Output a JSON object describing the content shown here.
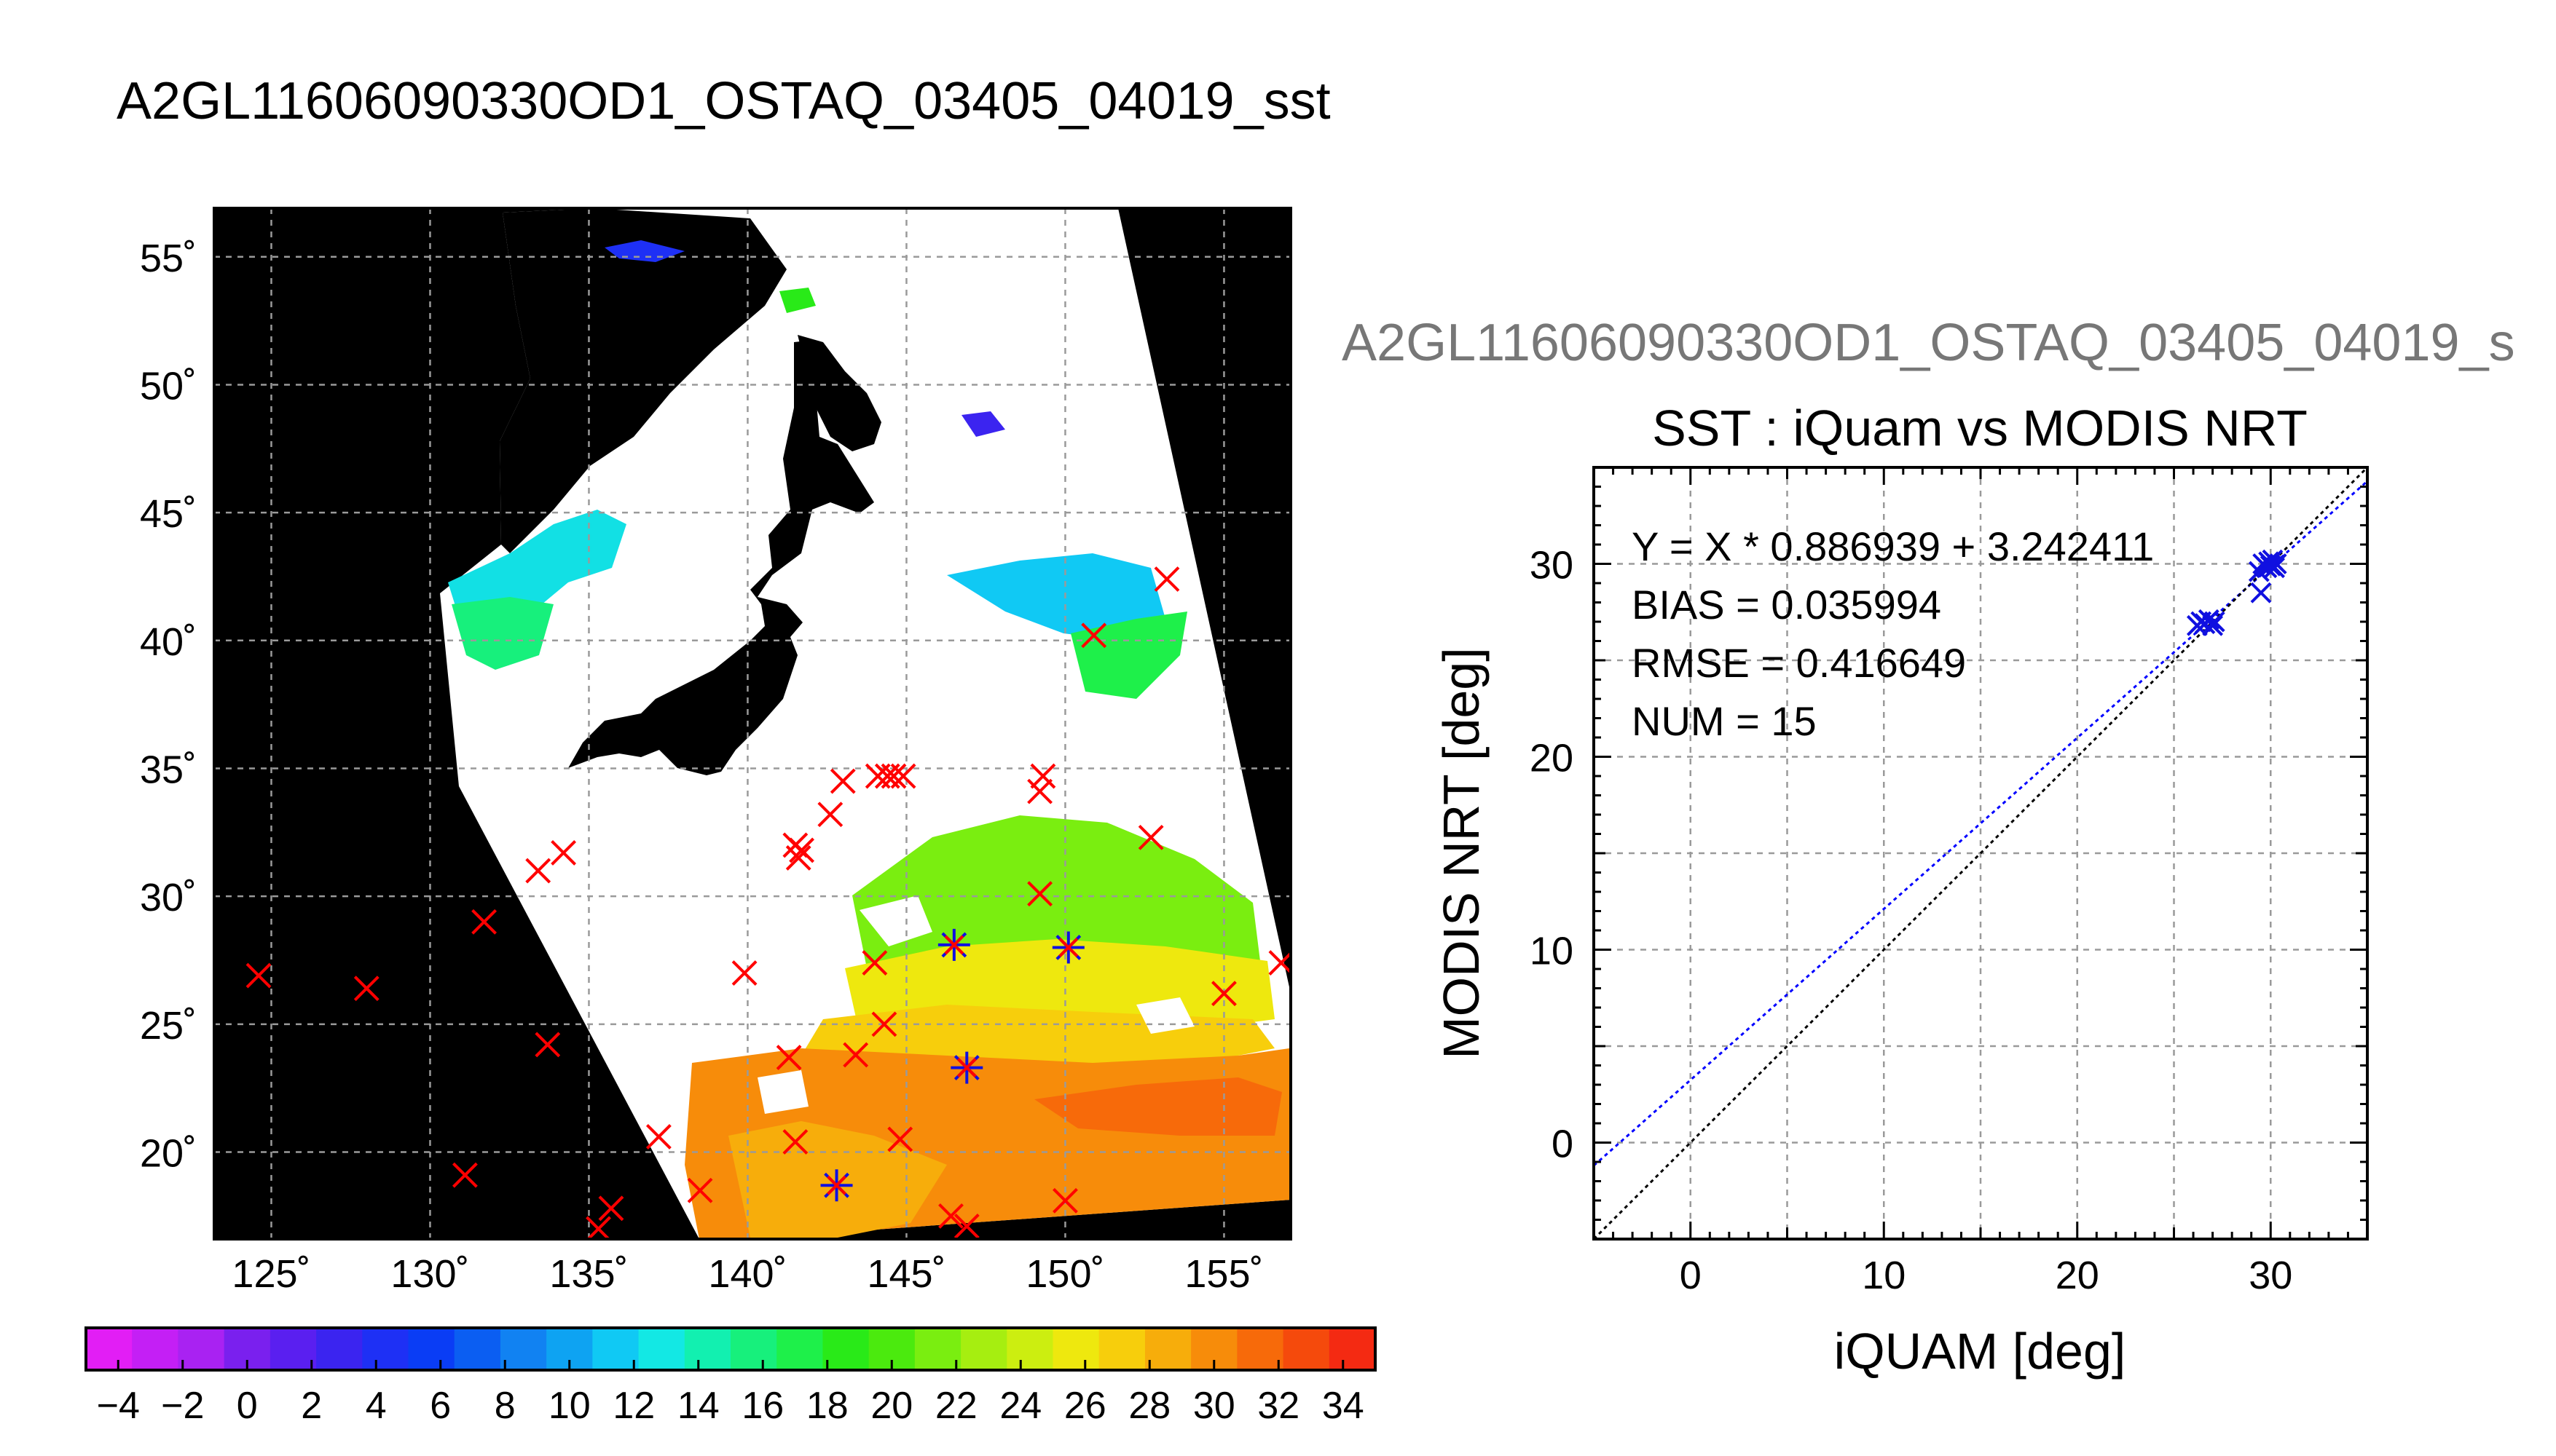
{
  "map": {
    "title": "A2GL11606090330OD1_OSTAQ_03405_04019_sst",
    "lon_ticks": [
      "125˚",
      "130˚",
      "135˚",
      "140˚",
      "145˚",
      "150˚",
      "155˚"
    ],
    "lat_ticks": [
      "20˚",
      "25˚",
      "30˚",
      "35˚",
      "40˚",
      "45˚",
      "50˚",
      "55˚"
    ],
    "lon_range": [
      123.2,
      157.1
    ],
    "lat_range": [
      16.6,
      56.9
    ]
  },
  "colorbar": {
    "range": [
      -5,
      35
    ],
    "tick_labels": [
      "−4",
      "−2",
      "0",
      "2",
      "4",
      "6",
      "8",
      "10",
      "12",
      "14",
      "16",
      "18",
      "20",
      "22",
      "24",
      "26",
      "28",
      "30",
      "32",
      "34"
    ],
    "colors": [
      "#e21ef5",
      "#c41ff5",
      "#a922f2",
      "#7a20ee",
      "#5a1ff0",
      "#3b24f0",
      "#1e30f5",
      "#0a3df5",
      "#0b5ef2",
      "#1182f2",
      "#0ea3f2",
      "#10c9f4",
      "#13e8e4",
      "#12f0b0",
      "#17f07c",
      "#1ef04a",
      "#29ea18",
      "#4bea0e",
      "#7aee10",
      "#a6ee10",
      "#ccee10",
      "#eee80e",
      "#f7ce0c",
      "#f7ad0b",
      "#f78c0a",
      "#f76a0a",
      "#f54a0c",
      "#f42a12"
    ]
  },
  "scatter": {
    "file_title": "A2GL11606090330OD1_OSTAQ_03405_04019_s",
    "title": "SST : iQuam vs MODIS NRT",
    "xlabel": "iQUAM [deg]",
    "ylabel": "MODIS NRT [deg]",
    "x_ticks": [
      "0",
      "10",
      "20",
      "30"
    ],
    "y_ticks": [
      "0",
      "10",
      "20",
      "30"
    ],
    "stats": [
      "Y = X * 0.886939 + 3.242411",
      "BIAS = 0.035994",
      "RMSE = 0.416649",
      "NUM = 15"
    ]
  },
  "colors": {
    "match_marker": "#1010e0",
    "unmatched_marker": "#ff0000",
    "regression_line": "#0000ff",
    "identity_line": "#000000",
    "map_background": "#000000",
    "grid": "#9a9a9a"
  },
  "chart_data": [
    {
      "type": "scatter",
      "name": "map",
      "title": "A2GL11606090330OD1_OSTAQ_03405_04019_sst",
      "xlim": [
        123.2,
        157.1
      ],
      "ylim": [
        16.6,
        56.9
      ],
      "grid": true,
      "series": [
        {
          "name": "unmatched",
          "marker": "x",
          "color": "#ff0000",
          "points": [
            [
              124.6,
              26.9
            ],
            [
              128.0,
              26.4
            ],
            [
              131.7,
              29.0
            ],
            [
              133.4,
              31.0
            ],
            [
              134.2,
              31.7
            ],
            [
              133.7,
              24.2
            ],
            [
              131.1,
              19.1
            ],
            [
              135.7,
              17.8
            ],
            [
              135.3,
              17.0
            ],
            [
              137.2,
              20.6
            ],
            [
              138.5,
              18.5
            ],
            [
              139.9,
              27.0
            ],
            [
              141.3,
              23.7
            ],
            [
              141.5,
              20.4
            ],
            [
              141.5,
              32.0
            ],
            [
              141.6,
              31.5
            ],
            [
              141.7,
              31.8
            ],
            [
              142.6,
              33.2
            ],
            [
              143.0,
              34.5
            ],
            [
              143.4,
              23.8
            ],
            [
              144.0,
              27.4
            ],
            [
              144.1,
              34.7
            ],
            [
              144.4,
              34.7
            ],
            [
              144.6,
              34.7
            ],
            [
              144.3,
              25.0
            ],
            [
              144.9,
              34.7
            ],
            [
              144.8,
              20.5
            ],
            [
              146.4,
              17.5
            ],
            [
              146.9,
              17.1
            ],
            [
              149.2,
              30.1
            ],
            [
              149.2,
              34.1
            ],
            [
              149.3,
              34.7
            ],
            [
              150.0,
              18.1
            ],
            [
              150.9,
              40.2
            ],
            [
              152.7,
              32.3
            ],
            [
              153.2,
              42.4
            ],
            [
              155.0,
              26.2
            ],
            [
              156.8,
              27.4
            ]
          ]
        },
        {
          "name": "matched",
          "marker": "x+",
          "color": "#1010e0",
          "points": [
            [
              146.5,
              28.1
            ],
            [
              150.1,
              28.0
            ],
            [
              146.9,
              23.3
            ],
            [
              142.8,
              18.7
            ]
          ]
        }
      ]
    },
    {
      "type": "scatter",
      "name": "sst-comparison",
      "title": "SST : iQuam vs MODIS NRT",
      "xlabel": "iQUAM [deg]",
      "ylabel": "MODIS NRT [deg]",
      "xlim": [
        -5,
        35
      ],
      "ylim": [
        -5,
        35
      ],
      "grid": true,
      "series": [
        {
          "name": "matchups",
          "marker": "x",
          "color": "#1010e0",
          "points": [
            [
              26.2,
              26.8
            ],
            [
              26.4,
              27.0
            ],
            [
              26.6,
              26.9
            ],
            [
              26.8,
              27.1
            ],
            [
              27.0,
              26.8
            ],
            [
              27.1,
              27.0
            ],
            [
              29.4,
              29.6
            ],
            [
              29.5,
              28.5
            ],
            [
              29.6,
              30.0
            ],
            [
              29.8,
              29.8
            ],
            [
              29.9,
              30.1
            ],
            [
              30.0,
              29.9
            ],
            [
              30.1,
              30.2
            ],
            [
              30.2,
              29.8
            ],
            [
              30.3,
              30.0
            ]
          ]
        }
      ],
      "lines": [
        {
          "kind": "regression",
          "slope": 0.886939,
          "intercept": 3.242411,
          "color": "#0000ff",
          "style": "dotted"
        },
        {
          "kind": "identity",
          "slope": 1,
          "intercept": 0,
          "color": "#000000",
          "style": "dotted"
        }
      ]
    }
  ]
}
